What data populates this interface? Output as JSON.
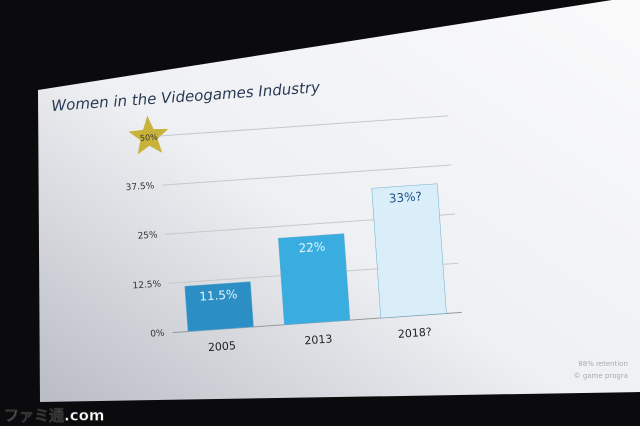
{
  "chart_data": {
    "type": "bar",
    "title": "Women in the Videogames Industry",
    "categories": [
      "2005",
      "2013",
      "2018?"
    ],
    "values": [
      11.5,
      22,
      33
    ],
    "value_labels": [
      "11.5%",
      "22%",
      "33%?"
    ],
    "colors": [
      "#2b8fc6",
      "#39ade0",
      "#d9eef8"
    ],
    "ylim": [
      0,
      50
    ],
    "yticks": [
      {
        "value": 0,
        "label": "0%"
      },
      {
        "value": 12.5,
        "label": "12.5%"
      },
      {
        "value": 25,
        "label": "25%"
      },
      {
        "value": 37.5,
        "label": "37.5%"
      },
      {
        "value": 50,
        "label": "50%"
      }
    ],
    "grid": true,
    "footnotes": [
      "88% retention",
      "© game progra"
    ]
  },
  "watermark": "ファミ通.com"
}
